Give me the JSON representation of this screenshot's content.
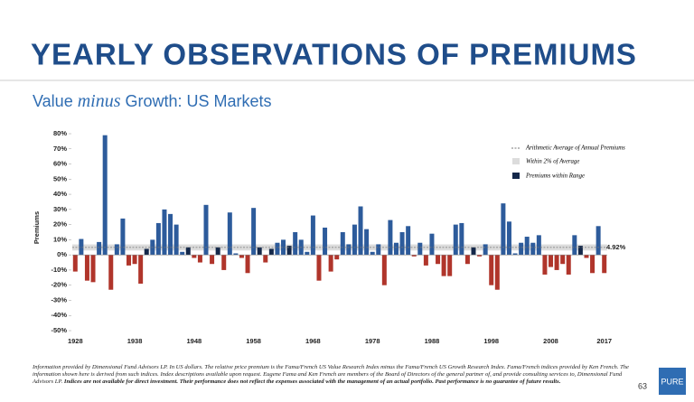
{
  "title": "YEARLY OBSERVATIONS OF PREMIUMS",
  "subtitle": {
    "before": "Value",
    "italic": "minus",
    "after": "Growth: US Markets"
  },
  "footnote": {
    "normal": "Information provided by Dimensional Fund Advisors LP. In US dollars. The relative price premium is the Fama/French US Value Research Index minus the Fama/French US Growth Research Index. Fama/French indices provided by Ken French. The information shown here is derived from such indices. Index descriptions available upon request. Eugene Fama and Ken French are members of the Board of Directors of the general partner of, and provide consulting services to, Dimensional Fund Advisors LP.",
    "bold": "Indices are not available for direct investment. Their performance does not reflect the expenses associated with the management of an actual portfolio. Past performance is no guarantee of future results."
  },
  "page_number": "63",
  "logo": "PURE",
  "chart_data": {
    "type": "bar",
    "ylabel": "Premiums",
    "categories": [
      "1928",
      null,
      null,
      null,
      null,
      null,
      null,
      null,
      null,
      null,
      "1938",
      null,
      null,
      null,
      null,
      null,
      null,
      null,
      null,
      null,
      "1948",
      null,
      null,
      null,
      null,
      null,
      null,
      null,
      null,
      null,
      "1958",
      null,
      null,
      null,
      null,
      null,
      null,
      null,
      null,
      null,
      "1968",
      null,
      null,
      null,
      null,
      null,
      null,
      null,
      null,
      null,
      "1978",
      null,
      null,
      null,
      null,
      null,
      null,
      null,
      null,
      null,
      "1988",
      null,
      null,
      null,
      null,
      null,
      null,
      null,
      null,
      null,
      "1998",
      null,
      null,
      null,
      null,
      null,
      null,
      null,
      null,
      null,
      "2008",
      null,
      null,
      null,
      null,
      null,
      null,
      null,
      null,
      "2017"
    ],
    "values": [
      -11,
      10.5,
      -17,
      -18,
      8.5,
      79,
      -23,
      7,
      24,
      -7,
      -6,
      -19,
      4,
      10,
      21,
      30,
      27,
      20,
      2,
      5,
      -2,
      -5,
      33,
      -6,
      5,
      -10,
      28,
      1,
      -2,
      -12,
      31,
      5,
      -5,
      4,
      8,
      10,
      6,
      15,
      10,
      2,
      26,
      -17,
      18,
      -11,
      -3,
      15,
      7,
      20,
      32,
      17,
      2,
      7,
      -20,
      23,
      8,
      15,
      19,
      -1,
      8,
      -7,
      14,
      -6,
      -14,
      -14,
      20,
      21,
      -6,
      5,
      -1,
      7,
      -20,
      -23,
      34,
      22,
      1,
      8,
      12,
      8,
      13,
      -13,
      -8,
      -10,
      -6,
      -13,
      13,
      6,
      -2,
      -12,
      19,
      -12
    ],
    "ylim": [
      -50,
      80
    ],
    "yticks": [
      {
        "value": 80,
        "label": "80%"
      },
      {
        "value": 70,
        "label": "70%"
      },
      {
        "value": 60,
        "label": "60%"
      },
      {
        "value": 50,
        "label": "50%"
      },
      {
        "value": 40,
        "label": "40%"
      },
      {
        "value": 30,
        "label": "30%"
      },
      {
        "value": 20,
        "label": "20%"
      },
      {
        "value": 10,
        "label": "10%"
      },
      {
        "value": 0,
        "label": "0%"
      },
      {
        "value": -10,
        "label": "-10%"
      },
      {
        "value": -20,
        "label": "-20%"
      },
      {
        "value": -30,
        "label": "-30%"
      },
      {
        "value": -40,
        "label": "-40%"
      },
      {
        "value": -50,
        "label": "-50%"
      }
    ],
    "average": {
      "value": 4.92,
      "label": "4.92%"
    },
    "range_half_width": 2,
    "colors": {
      "positive": "#2d5b9b",
      "negative": "#b0352b",
      "in_range": "#14284a",
      "band": "#dcdcdc",
      "average": "#777777"
    },
    "legend": {
      "average": "Arithmetic Average of Annual Premiums",
      "band": "Within 2% of Average",
      "in_range": "Premiums within Range"
    },
    "legend_position": "upper right"
  }
}
